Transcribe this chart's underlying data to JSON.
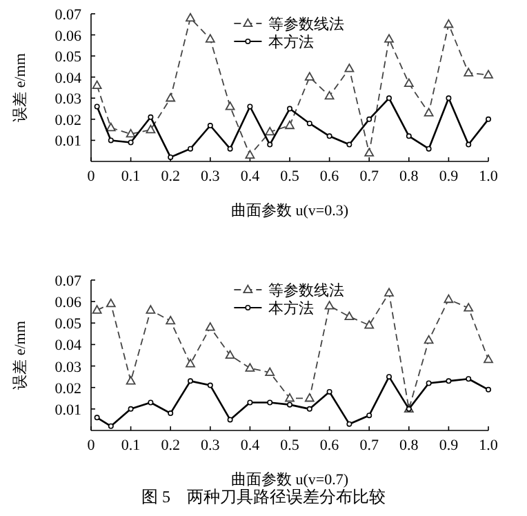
{
  "chart_data": [
    {
      "type": "line",
      "xlabel": "曲面参数 u(v=0.3)",
      "ylabel": "误差 e/mm",
      "x": [
        0.015,
        0.05,
        0.1,
        0.15,
        0.2,
        0.25,
        0.3,
        0.35,
        0.4,
        0.45,
        0.5,
        0.55,
        0.6,
        0.65,
        0.7,
        0.75,
        0.8,
        0.85,
        0.9,
        0.95,
        1.0
      ],
      "xlim": [
        0,
        1
      ],
      "xticks": [
        0,
        0.1,
        0.2,
        0.3,
        0.4,
        0.5,
        0.6,
        0.7,
        0.8,
        0.9,
        {
          "value": 1,
          "label": "1.0"
        }
      ],
      "ylim": [
        0,
        0.07
      ],
      "yticks": [
        0.01,
        0.02,
        0.03,
        0.04,
        0.05,
        0.06,
        0.07
      ],
      "legend": "top",
      "grid": false,
      "series": [
        {
          "name": "等参数线法",
          "color": "#444444",
          "marker": "triangle",
          "line_style": "dashed",
          "values": [
            0.036,
            0.016,
            0.013,
            0.015,
            0.03,
            0.068,
            0.058,
            0.026,
            0.003,
            0.014,
            0.017,
            0.04,
            0.031,
            0.044,
            0.004,
            0.058,
            0.037,
            0.023,
            0.065,
            0.042,
            0.041
          ]
        },
        {
          "name": "本方法",
          "color": "#000000",
          "marker": "circle",
          "line_style": "solid",
          "values": [
            0.026,
            0.01,
            0.009,
            0.021,
            0.002,
            0.006,
            0.017,
            0.006,
            0.026,
            0.008,
            0.025,
            0.018,
            0.012,
            0.008,
            0.02,
            0.03,
            0.012,
            0.006,
            0.03,
            0.008,
            0.02
          ]
        }
      ]
    },
    {
      "type": "line",
      "xlabel": "曲面参数 u(v=0.7)",
      "ylabel": "误差 e/mm",
      "x": [
        0.015,
        0.05,
        0.1,
        0.15,
        0.2,
        0.25,
        0.3,
        0.35,
        0.4,
        0.45,
        0.5,
        0.55,
        0.6,
        0.65,
        0.7,
        0.75,
        0.8,
        0.85,
        0.9,
        0.95,
        1.0
      ],
      "xlim": [
        0,
        1
      ],
      "xticks": [
        0,
        0.1,
        0.2,
        0.3,
        0.4,
        0.5,
        0.6,
        0.7,
        0.8,
        0.9,
        {
          "value": 1,
          "label": "1.0"
        }
      ],
      "ylim": [
        0,
        0.07
      ],
      "yticks": [
        0.01,
        0.02,
        0.03,
        0.04,
        0.05,
        0.06,
        0.07
      ],
      "legend": "top",
      "grid": false,
      "annotations": [
        "图 5　两种刀具路径误差分布比较"
      ],
      "series": [
        {
          "name": "等参数线法",
          "color": "#444444",
          "marker": "triangle",
          "line_style": "dashed",
          "values": [
            0.056,
            0.059,
            0.023,
            0.056,
            0.051,
            0.031,
            0.048,
            0.035,
            0.029,
            0.027,
            0.015,
            0.015,
            0.058,
            0.053,
            0.049,
            0.064,
            0.01,
            0.042,
            0.061,
            0.057,
            0.033
          ]
        },
        {
          "name": "本方法",
          "color": "#000000",
          "marker": "circle",
          "line_style": "solid",
          "values": [
            0.006,
            0.002,
            0.01,
            0.013,
            0.008,
            0.023,
            0.021,
            0.005,
            0.013,
            0.013,
            0.012,
            0.01,
            0.018,
            0.003,
            0.007,
            0.025,
            0.01,
            0.022,
            0.023,
            0.024,
            0.019
          ]
        }
      ]
    }
  ]
}
